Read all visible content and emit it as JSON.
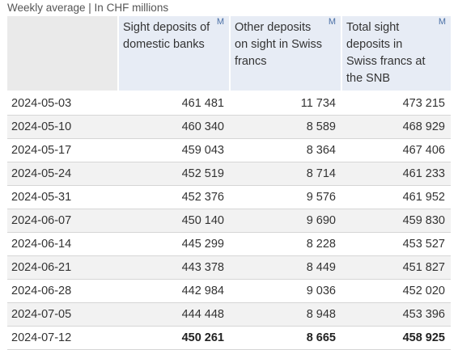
{
  "caption": "Weekly average | In CHF millions",
  "headers": [
    {
      "label": "Sight deposits of domestic banks",
      "flag": "M"
    },
    {
      "label": "Other deposits on sight in Swiss francs",
      "flag": "M"
    },
    {
      "label": "Total sight deposits in Swiss francs at the SNB",
      "flag": "M"
    }
  ],
  "rows": [
    {
      "date": "2024-05-03",
      "v1": "461 481",
      "v2": "11 734",
      "v3": "473 215"
    },
    {
      "date": "2024-05-10",
      "v1": "460 340",
      "v2": "8 589",
      "v3": "468 929"
    },
    {
      "date": "2024-05-17",
      "v1": "459 043",
      "v2": "8 364",
      "v3": "467 406"
    },
    {
      "date": "2024-05-24",
      "v1": "452 519",
      "v2": "8 714",
      "v3": "461 233"
    },
    {
      "date": "2024-05-31",
      "v1": "452 376",
      "v2": "9 576",
      "v3": "461 952"
    },
    {
      "date": "2024-06-07",
      "v1": "450 140",
      "v2": "9 690",
      "v3": "459 830"
    },
    {
      "date": "2024-06-14",
      "v1": "445 299",
      "v2": "8 228",
      "v3": "453 527"
    },
    {
      "date": "2024-06-21",
      "v1": "443 378",
      "v2": "8 449",
      "v3": "451 827"
    },
    {
      "date": "2024-06-28",
      "v1": "442 984",
      "v2": "9 036",
      "v3": "452 020"
    },
    {
      "date": "2024-07-05",
      "v1": "444 448",
      "v2": "8 948",
      "v3": "453 396"
    },
    {
      "date": "2024-07-12",
      "v1": "450 261",
      "v2": "8 665",
      "v3": "458 925"
    }
  ]
}
